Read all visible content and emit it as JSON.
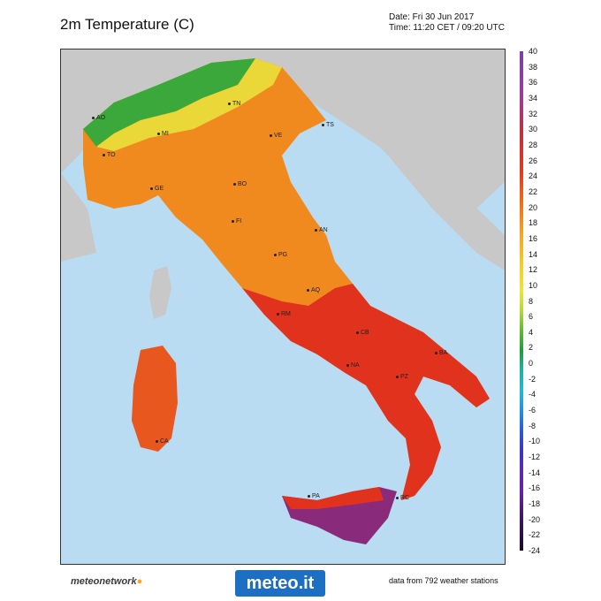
{
  "title": "2m Temperature (C)",
  "date_line": "Date: Fri 30 Jun 2017",
  "time_line": "Time: 11:20 CET / 09:20 UTC",
  "colorbar": {
    "labels": [
      "40",
      "38",
      "36",
      "34",
      "32",
      "30",
      "28",
      "26",
      "24",
      "22",
      "20",
      "18",
      "16",
      "14",
      "12",
      "10",
      "8",
      "6",
      "4",
      "2",
      "0",
      "-2",
      "-4",
      "-6",
      "-8",
      "-10",
      "-12",
      "-14",
      "-16",
      "-18",
      "-20",
      "-22",
      "-24"
    ]
  },
  "cities": [
    {
      "name": "AO"
    },
    {
      "name": "TN"
    },
    {
      "name": "TS"
    },
    {
      "name": "MI"
    },
    {
      "name": "VE"
    },
    {
      "name": "TO"
    },
    {
      "name": "BO"
    },
    {
      "name": "GE"
    },
    {
      "name": "FI"
    },
    {
      "name": "AN"
    },
    {
      "name": "PG"
    },
    {
      "name": "AQ"
    },
    {
      "name": "RM"
    },
    {
      "name": "CB"
    },
    {
      "name": "BA"
    },
    {
      "name": "NA"
    },
    {
      "name": "PZ"
    },
    {
      "name": "CA"
    },
    {
      "name": "RC"
    },
    {
      "name": "PA"
    }
  ],
  "footer": {
    "left_brand": "meteonetwork",
    "logo": "meteo.it",
    "right_note": "data from 792 weather stations"
  },
  "colors": {
    "sea": "#b9dcf3",
    "foreign_land": "#c8c8c8",
    "warm": "#f08a1e",
    "hot": "#e0321d",
    "very_hot": "#8a2a7a",
    "cool_alps": "#3aa83a"
  }
}
